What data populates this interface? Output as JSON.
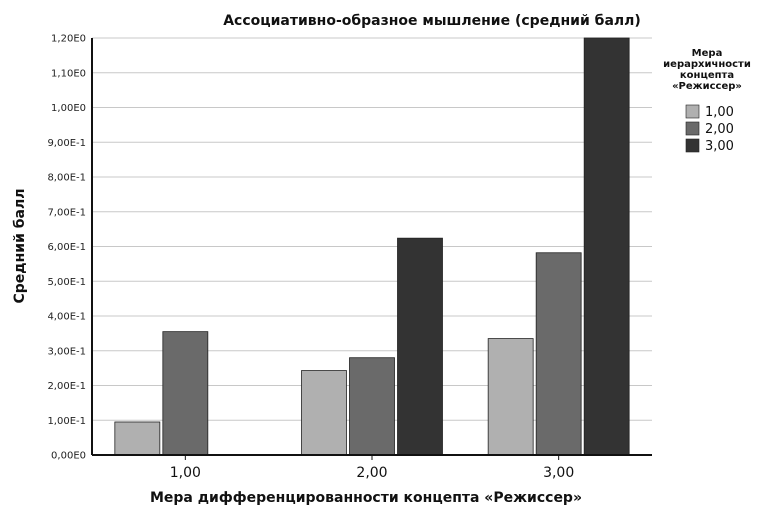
{
  "chart_data": {
    "type": "bar",
    "title": "Ассоциативно-образное мышление (средний балл)",
    "xlabel": "Мера дифференцированности концепта «Режиссер»",
    "ylabel": "Средний балл",
    "categories": [
      "1,00",
      "2,00",
      "3,00"
    ],
    "ylim": [
      0,
      1.2
    ],
    "yticks": [
      0,
      0.1,
      0.2,
      0.3,
      0.4,
      0.5,
      0.6,
      0.7,
      0.8,
      0.9,
      1.0,
      1.1,
      1.2
    ],
    "ytick_labels": [
      "0,00E0",
      "1,00E-1",
      "2,00E-1",
      "3,00E-1",
      "4,00E-1",
      "5,00E-1",
      "6,00E-1",
      "7,00E-1",
      "8,00E-1",
      "9,00E-1",
      "1,00E0",
      "1,10E0",
      "1,20E0"
    ],
    "grid": true,
    "legend": {
      "title_lines": [
        "Мера",
        "иерархичности",
        "концепта",
        "«Режиссер»"
      ],
      "placement": "right"
    },
    "series": [
      {
        "name": "1,00",
        "color": "#b0b0b0",
        "values": [
          0.095,
          0.243,
          0.335
        ]
      },
      {
        "name": "2,00",
        "color": "#6a6a6a",
        "values": [
          0.355,
          0.28,
          0.582
        ]
      },
      {
        "name": "3,00",
        "color": "#333333",
        "values": [
          null,
          0.624,
          1.2
        ]
      }
    ]
  }
}
